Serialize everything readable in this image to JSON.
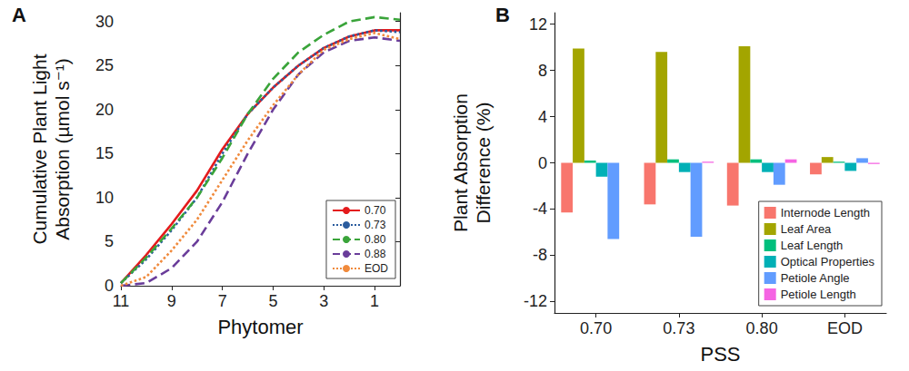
{
  "chart_data": [
    {
      "type": "line",
      "title": "A",
      "x_label": "Phytomer",
      "y_label": "Cumulative Plant Light\nAbsorption (µmol s⁻¹)",
      "x": [
        11,
        10,
        9,
        8,
        7,
        6,
        5,
        4,
        3,
        2,
        1,
        0
      ],
      "xlim": [
        11,
        0
      ],
      "xticks": [
        11,
        9,
        7,
        5,
        3,
        1
      ],
      "ylim": [
        0,
        31
      ],
      "yticks": [
        0,
        5,
        10,
        15,
        20,
        25,
        30
      ],
      "grid": false,
      "legend": "lower right",
      "marker": "none",
      "series": [
        {
          "name": "0.70",
          "color": "#e41a1c",
          "line_style": "solid",
          "values": [
            0.3,
            3.5,
            7.0,
            10.8,
            15.5,
            19.5,
            22.5,
            25.0,
            27.0,
            28.3,
            29.0,
            29.0
          ]
        },
        {
          "name": "0.73",
          "color": "#2b5c9e",
          "line_style": "dotted",
          "values": [
            0.3,
            3.0,
            6.3,
            10.0,
            15.0,
            19.5,
            22.5,
            25.0,
            27.0,
            28.3,
            29.0,
            28.8
          ]
        },
        {
          "name": "0.80",
          "color": "#3aa43a",
          "line_style": "dashed",
          "values": [
            0.3,
            3.2,
            6.5,
            10.0,
            14.5,
            19.5,
            23.5,
            26.5,
            28.5,
            30.0,
            30.5,
            30.2
          ]
        },
        {
          "name": "0.88",
          "color": "#6a3d9a",
          "line_style": "dashed",
          "values": [
            0.0,
            0.3,
            2.0,
            5.0,
            9.5,
            15.0,
            20.0,
            24.0,
            26.5,
            27.8,
            28.2,
            27.8
          ]
        },
        {
          "name": "EOD",
          "color": "#f08a3c",
          "line_style": "dotted",
          "values": [
            0.0,
            1.0,
            4.0,
            7.5,
            12.0,
            16.5,
            20.5,
            24.0,
            26.8,
            28.0,
            28.7,
            28.0
          ]
        }
      ]
    },
    {
      "type": "bar",
      "title": "B",
      "x_label": "PSS",
      "y_label": "Plant Absorption\nDifference (%)",
      "categories": [
        "0.70",
        "0.73",
        "0.80",
        "EOD"
      ],
      "ylim": [
        -13,
        13
      ],
      "yticks": [
        -12,
        -8,
        -4,
        0,
        4,
        8,
        12
      ],
      "grid": false,
      "legend": "lower right",
      "series": [
        {
          "name": "Internode Length",
          "color": "#f8766d",
          "values": [
            -4.3,
            -3.6,
            -3.7,
            -1.0
          ]
        },
        {
          "name": "Leaf Area",
          "color": "#a3a500",
          "values": [
            9.9,
            9.6,
            10.1,
            0.5
          ]
        },
        {
          "name": "Leaf Length",
          "color": "#00bf7d",
          "values": [
            0.2,
            0.3,
            0.3,
            0.1
          ]
        },
        {
          "name": "Optical Properties",
          "color": "#00b0b6",
          "values": [
            -1.2,
            -0.8,
            -0.8,
            -0.7
          ]
        },
        {
          "name": "Petiole Angle",
          "color": "#619cff",
          "values": [
            -6.6,
            -6.4,
            -1.9,
            0.4
          ]
        },
        {
          "name": "Petiole Length",
          "color": "#f564e3",
          "values": [
            0.0,
            0.1,
            0.3,
            -0.1
          ]
        }
      ]
    }
  ]
}
